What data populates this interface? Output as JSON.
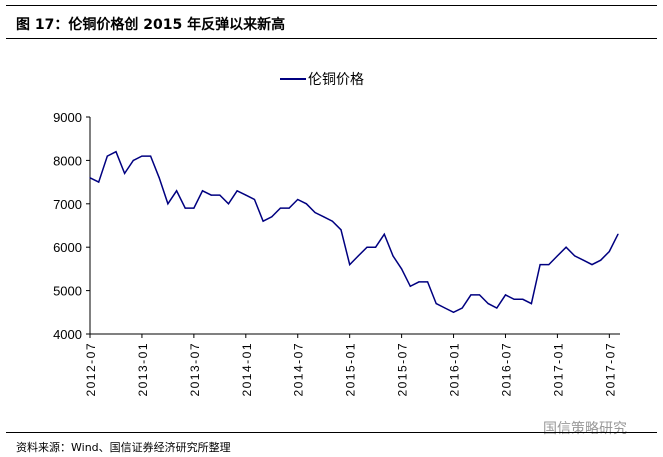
{
  "header": {
    "title": "图 17：伦铜价格创 2015 年反弹以来新高"
  },
  "footer": {
    "source": "资料来源：Wind、国信证券经济研究所整理",
    "watermark": "国信策略研究"
  },
  "chart_data": {
    "type": "line",
    "title": "",
    "legend": [
      "伦铜价格"
    ],
    "legend_position": "top-center",
    "xlabel": "",
    "ylabel": "",
    "ylim": [
      4000,
      9000
    ],
    "yticks": [
      4000,
      5000,
      6000,
      7000,
      8000,
      9000
    ],
    "xticks": [
      "2012-07",
      "2013-01",
      "2013-07",
      "2014-01",
      "2014-07",
      "2015-01",
      "2015-07",
      "2016-01",
      "2016-07",
      "2017-01",
      "2017-07"
    ],
    "series": [
      {
        "name": "伦铜价格",
        "color": "#000080",
        "x": [
          "2012-07",
          "2012-08",
          "2012-09",
          "2012-10",
          "2012-11",
          "2012-12",
          "2013-01",
          "2013-02",
          "2013-03",
          "2013-04",
          "2013-05",
          "2013-06",
          "2013-07",
          "2013-08",
          "2013-09",
          "2013-10",
          "2013-11",
          "2013-12",
          "2014-01",
          "2014-02",
          "2014-03",
          "2014-04",
          "2014-05",
          "2014-06",
          "2014-07",
          "2014-08",
          "2014-09",
          "2014-10",
          "2014-11",
          "2014-12",
          "2015-01",
          "2015-02",
          "2015-03",
          "2015-04",
          "2015-05",
          "2015-06",
          "2015-07",
          "2015-08",
          "2015-09",
          "2015-10",
          "2015-11",
          "2015-12",
          "2016-01",
          "2016-02",
          "2016-03",
          "2016-04",
          "2016-05",
          "2016-06",
          "2016-07",
          "2016-08",
          "2016-09",
          "2016-10",
          "2016-11",
          "2016-12",
          "2017-01",
          "2017-02",
          "2017-03",
          "2017-04",
          "2017-05",
          "2017-06",
          "2017-07",
          "2017-08"
        ],
        "values": [
          7600,
          7500,
          8100,
          8200,
          7700,
          8000,
          8100,
          8100,
          7600,
          7000,
          7300,
          6900,
          6900,
          7300,
          7200,
          7200,
          7000,
          7300,
          7200,
          7100,
          6600,
          6700,
          6900,
          6900,
          7100,
          7000,
          6800,
          6700,
          6600,
          6400,
          5600,
          5800,
          6000,
          6000,
          6300,
          5800,
          5500,
          5100,
          5200,
          5200,
          4700,
          4600,
          4500,
          4600,
          4900,
          4900,
          4700,
          4600,
          4900,
          4800,
          4800,
          4700,
          5600,
          5600,
          5800,
          6000,
          5800,
          5700,
          5600,
          5700,
          5900,
          6300
        ]
      }
    ]
  }
}
